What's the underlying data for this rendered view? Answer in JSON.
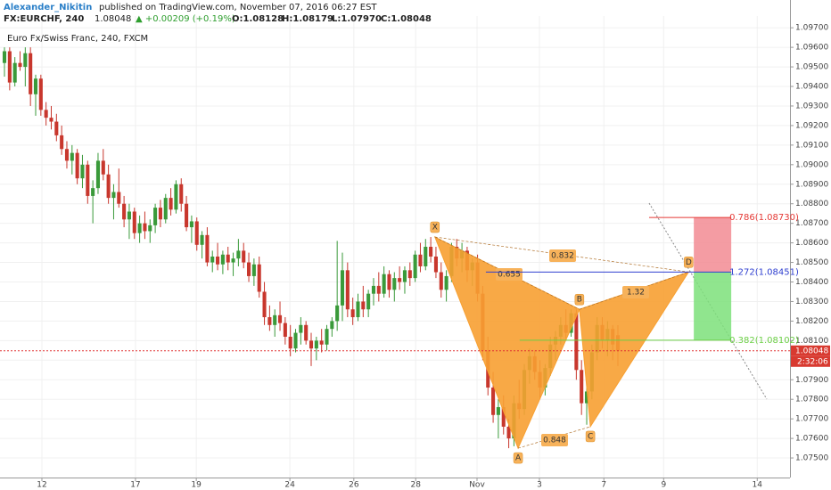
{
  "header": {
    "author": "Alexander_Nikitin",
    "published": "published on TradingView.com, November 07, 2016 06:27 EST",
    "symbol": "FX:EURCHF, 240",
    "last": "1.08048",
    "change": "▲ +0.00209 (+0.19%)",
    "open": "O:1.08128",
    "high": "H:1.08179",
    "low": "L:1.07970",
    "close": "C:1.08048"
  },
  "chart_data": {
    "type": "candlestick",
    "title": "Euro Fx/Swiss Franc, 240, FXCM",
    "up_color": "#3a9a3a",
    "down_color": "#c8372d",
    "xlim": [
      -0.86,
      151.1
    ],
    "ylim": [
      1.074,
      1.0976
    ],
    "grid": true,
    "xticks": [
      {
        "value": 7.2,
        "label": "12"
      },
      {
        "value": 25.2,
        "label": "17"
      },
      {
        "value": 36.9,
        "label": "19"
      },
      {
        "value": 54.9,
        "label": "24"
      },
      {
        "value": 67.2,
        "label": "26"
      },
      {
        "value": 79.1,
        "label": "28"
      },
      {
        "value": 90.9,
        "label": "Nov"
      },
      {
        "value": 102.9,
        "label": "3"
      },
      {
        "value": 115.3,
        "label": "7"
      },
      {
        "value": 126.8,
        "label": "9"
      },
      {
        "value": 144.8,
        "label": "14"
      }
    ],
    "yticks": [
      {
        "value": 1.075,
        "label": "1.07500"
      },
      {
        "value": 1.076,
        "label": "1.07600"
      },
      {
        "value": 1.077,
        "label": "1.07700"
      },
      {
        "value": 1.078,
        "label": "1.07800"
      },
      {
        "value": 1.079,
        "label": "1.07900"
      },
      {
        "value": 1.08,
        "label": "1.08000"
      },
      {
        "value": 1.081,
        "label": "1.08100"
      },
      {
        "value": 1.082,
        "label": "1.08200"
      },
      {
        "value": 1.083,
        "label": "1.08300"
      },
      {
        "value": 1.084,
        "label": "1.08400"
      },
      {
        "value": 1.085,
        "label": "1.08500"
      },
      {
        "value": 1.086,
        "label": "1.08600"
      },
      {
        "value": 1.087,
        "label": "1.08700"
      },
      {
        "value": 1.088,
        "label": "1.08800"
      },
      {
        "value": 1.089,
        "label": "1.08900"
      },
      {
        "value": 1.09,
        "label": "1.09000"
      },
      {
        "value": 1.091,
        "label": "1.09100"
      },
      {
        "value": 1.092,
        "label": "1.09200"
      },
      {
        "value": 1.093,
        "label": "1.09300"
      },
      {
        "value": 1.094,
        "label": "1.09400"
      },
      {
        "value": 1.095,
        "label": "1.09500"
      },
      {
        "value": 1.096,
        "label": "1.09600"
      },
      {
        "value": 1.097,
        "label": "1.09700"
      }
    ],
    "ohlc": [
      [
        1.0952,
        1.096,
        1.0945,
        1.0958
      ],
      [
        1.0958,
        1.096,
        1.0938,
        1.0942
      ],
      [
        1.0942,
        1.0955,
        1.094,
        1.0952
      ],
      [
        1.0952,
        1.0958,
        1.0948,
        1.095
      ],
      [
        1.095,
        1.096,
        1.094,
        1.0957
      ],
      [
        1.0957,
        1.096,
        1.093,
        1.0936
      ],
      [
        1.0936,
        1.0946,
        1.0925,
        1.0944
      ],
      [
        1.0944,
        1.0946,
        1.0925,
        1.0928
      ],
      [
        1.0928,
        1.0932,
        1.092,
        1.0924
      ],
      [
        1.0924,
        1.093,
        1.0918,
        1.0922
      ],
      [
        1.0922,
        1.0926,
        1.0912,
        1.0915
      ],
      [
        1.0915,
        1.092,
        1.0905,
        1.0908
      ],
      [
        1.0908,
        1.0912,
        1.0898,
        1.0902
      ],
      [
        1.0902,
        1.091,
        1.0895,
        1.0906
      ],
      [
        1.0906,
        1.0908,
        1.089,
        1.0893
      ],
      [
        1.0893,
        1.0905,
        1.0888,
        1.09
      ],
      [
        1.09,
        1.0902,
        1.088,
        1.0884
      ],
      [
        1.0884,
        1.0892,
        1.087,
        1.0888
      ],
      [
        1.0888,
        1.0906,
        1.0885,
        1.0902
      ],
      [
        1.0902,
        1.0908,
        1.0892,
        1.0895
      ],
      [
        1.0895,
        1.09,
        1.088,
        1.0883
      ],
      [
        1.0883,
        1.089,
        1.0872,
        1.0886
      ],
      [
        1.0886,
        1.0898,
        1.0878,
        1.088
      ],
      [
        1.088,
        1.0884,
        1.0868,
        1.0872
      ],
      [
        1.0872,
        1.088,
        1.0862,
        1.0876
      ],
      [
        1.0876,
        1.0878,
        1.0862,
        1.0865
      ],
      [
        1.0865,
        1.0874,
        1.086,
        1.087
      ],
      [
        1.087,
        1.0876,
        1.0862,
        1.0866
      ],
      [
        1.0866,
        1.0872,
        1.086,
        1.0869
      ],
      [
        1.0869,
        1.088,
        1.0865,
        1.0878
      ],
      [
        1.0878,
        1.0882,
        1.0868,
        1.0872
      ],
      [
        1.0872,
        1.0885,
        1.087,
        1.0883
      ],
      [
        1.0883,
        1.0888,
        1.0874,
        1.0877
      ],
      [
        1.0877,
        1.0892,
        1.0875,
        1.089
      ],
      [
        1.089,
        1.0893,
        1.0876,
        1.088
      ],
      [
        1.088,
        1.0884,
        1.0866,
        1.0868
      ],
      [
        1.0868,
        1.0874,
        1.086,
        1.0871
      ],
      [
        1.0871,
        1.0873,
        1.0856,
        1.0859
      ],
      [
        1.0859,
        1.0866,
        1.0852,
        1.0864
      ],
      [
        1.0864,
        1.0868,
        1.0848,
        1.085
      ],
      [
        1.085,
        1.0856,
        1.0845,
        1.0853
      ],
      [
        1.0853,
        1.086,
        1.0846,
        1.0849
      ],
      [
        1.0849,
        1.0856,
        1.0844,
        1.0854
      ],
      [
        1.0854,
        1.0858,
        1.0846,
        1.085
      ],
      [
        1.085,
        1.0855,
        1.0843,
        1.0852
      ],
      [
        1.0852,
        1.0862,
        1.0848,
        1.0856
      ],
      [
        1.0856,
        1.086,
        1.0847,
        1.085
      ],
      [
        1.085,
        1.0855,
        1.084,
        1.0843
      ],
      [
        1.0843,
        1.0852,
        1.0838,
        1.0849
      ],
      [
        1.0849,
        1.0853,
        1.0832,
        1.0835
      ],
      [
        1.0835,
        1.084,
        1.0818,
        1.0822
      ],
      [
        1.0822,
        1.0828,
        1.0815,
        1.0818
      ],
      [
        1.0818,
        1.0826,
        1.0812,
        1.0823
      ],
      [
        1.0823,
        1.083,
        1.0815,
        1.0819
      ],
      [
        1.0819,
        1.0822,
        1.0808,
        1.0812
      ],
      [
        1.0812,
        1.0818,
        1.0802,
        1.0806
      ],
      [
        1.0806,
        1.0816,
        1.0804,
        1.0814
      ],
      [
        1.0814,
        1.0822,
        1.0808,
        1.0818
      ],
      [
        1.0818,
        1.082,
        1.0808,
        1.081
      ],
      [
        1.081,
        1.0814,
        1.0797,
        1.0806
      ],
      [
        1.0806,
        1.0812,
        1.08,
        1.081
      ],
      [
        1.081,
        1.0816,
        1.0804,
        1.0808
      ],
      [
        1.0808,
        1.0818,
        1.0805,
        1.0816
      ],
      [
        1.0816,
        1.0822,
        1.0812,
        1.082
      ],
      [
        1.082,
        1.0861,
        1.0815,
        1.0828
      ],
      [
        1.0828,
        1.0855,
        1.082,
        1.0846
      ],
      [
        1.0846,
        1.085,
        1.0822,
        1.0826
      ],
      [
        1.0826,
        1.0832,
        1.0818,
        1.0822
      ],
      [
        1.0822,
        1.0834,
        1.082,
        1.083
      ],
      [
        1.083,
        1.0838,
        1.0822,
        1.0826
      ],
      [
        1.0826,
        1.0836,
        1.0822,
        1.0834
      ],
      [
        1.0834,
        1.0842,
        1.0828,
        1.0838
      ],
      [
        1.0838,
        1.0845,
        1.083,
        1.0834
      ],
      [
        1.0834,
        1.0848,
        1.0832,
        1.0844
      ],
      [
        1.0844,
        1.0846,
        1.0832,
        1.0836
      ],
      [
        1.0836,
        1.0845,
        1.083,
        1.0842
      ],
      [
        1.0842,
        1.0848,
        1.0836,
        1.084
      ],
      [
        1.084,
        1.0848,
        1.0834,
        1.0846
      ],
      [
        1.0846,
        1.085,
        1.0838,
        1.0842
      ],
      [
        1.0842,
        1.0856,
        1.084,
        1.0854
      ],
      [
        1.0854,
        1.086,
        1.0845,
        1.0848
      ],
      [
        1.0848,
        1.0862,
        1.0846,
        1.0858
      ],
      [
        1.0858,
        1.0863,
        1.085,
        1.0853
      ],
      [
        1.0853,
        1.0858,
        1.0842,
        1.0845
      ],
      [
        1.0845,
        1.085,
        1.0832,
        1.0836
      ],
      [
        1.0836,
        1.0846,
        1.083,
        1.0843
      ],
      [
        1.0843,
        1.086,
        1.084,
        1.0858
      ],
      [
        1.0858,
        1.0862,
        1.0848,
        1.0852
      ],
      [
        1.0852,
        1.086,
        1.0845,
        1.0856
      ],
      [
        1.0856,
        1.0858,
        1.084,
        1.0846
      ],
      [
        1.0846,
        1.0852,
        1.0838,
        1.085
      ],
      [
        1.085,
        1.0854,
        1.083,
        1.0834
      ],
      [
        1.0834,
        1.0838,
        1.08,
        1.0805
      ],
      [
        1.0805,
        1.0812,
        1.0782,
        1.0786
      ],
      [
        1.0786,
        1.0794,
        1.0768,
        1.0772
      ],
      [
        1.0772,
        1.078,
        1.076,
        1.0776
      ],
      [
        1.0776,
        1.0782,
        1.0762,
        1.0766
      ],
      [
        1.0766,
        1.077,
        1.0755,
        1.076
      ],
      [
        1.076,
        1.0782,
        1.0756,
        1.0778
      ],
      [
        1.0778,
        1.079,
        1.077,
        1.0775
      ],
      [
        1.0775,
        1.0798,
        1.0772,
        1.0795
      ],
      [
        1.0795,
        1.0806,
        1.0788,
        1.0802
      ],
      [
        1.0802,
        1.0805,
        1.079,
        1.0794
      ],
      [
        1.0794,
        1.08,
        1.078,
        1.0786
      ],
      [
        1.0786,
        1.0798,
        1.0782,
        1.0796
      ],
      [
        1.0796,
        1.0812,
        1.0792,
        1.0808
      ],
      [
        1.0808,
        1.0815,
        1.08,
        1.0812
      ],
      [
        1.0812,
        1.0822,
        1.0808,
        1.0818
      ],
      [
        1.0818,
        1.0826,
        1.081,
        1.0814
      ],
      [
        1.0814,
        1.0826,
        1.0812,
        1.0824
      ],
      [
        1.0824,
        1.0826,
        1.079,
        1.0795
      ],
      [
        1.0795,
        1.08,
        1.0772,
        1.0778
      ],
      [
        1.0778,
        1.0788,
        1.0767,
        1.0784
      ],
      [
        1.0784,
        1.0808,
        1.078,
        1.0804
      ],
      [
        1.0804,
        1.0822,
        1.08,
        1.0818
      ],
      [
        1.0818,
        1.0822,
        1.0806,
        1.081
      ],
      [
        1.081,
        1.082,
        1.0802,
        1.0816
      ],
      [
        1.0816,
        1.0818,
        1.08,
        1.0808
      ],
      [
        1.08128,
        1.08179,
        1.0797,
        1.08048
      ]
    ],
    "pattern": {
      "color": "#f7a032",
      "points": [
        {
          "label": "X",
          "x": 82.8,
          "y": 1.0863
        },
        {
          "label": "A",
          "x": 98.8,
          "y": 1.0755
        },
        {
          "label": "B",
          "x": 110.6,
          "y": 1.0826
        },
        {
          "label": "C",
          "x": 112.7,
          "y": 1.0766
        },
        {
          "label": "D",
          "x": 131.6,
          "y": 1.08451
        }
      ],
      "ratios": [
        "0.832",
        "0.655",
        "1.32",
        "0.848"
      ]
    },
    "levels": [
      {
        "value": 1.0873,
        "label": "0.786(1.08730)",
        "color": "#e53935"
      },
      {
        "value": 1.08451,
        "label": "1.272(1.08451)",
        "color": "#2f3fd0"
      },
      {
        "value": 1.08102,
        "label": "0.382(1.08102)",
        "color": "#6ccf46"
      }
    ],
    "last_price": 1.08048,
    "countdown": "2:32:06"
  }
}
